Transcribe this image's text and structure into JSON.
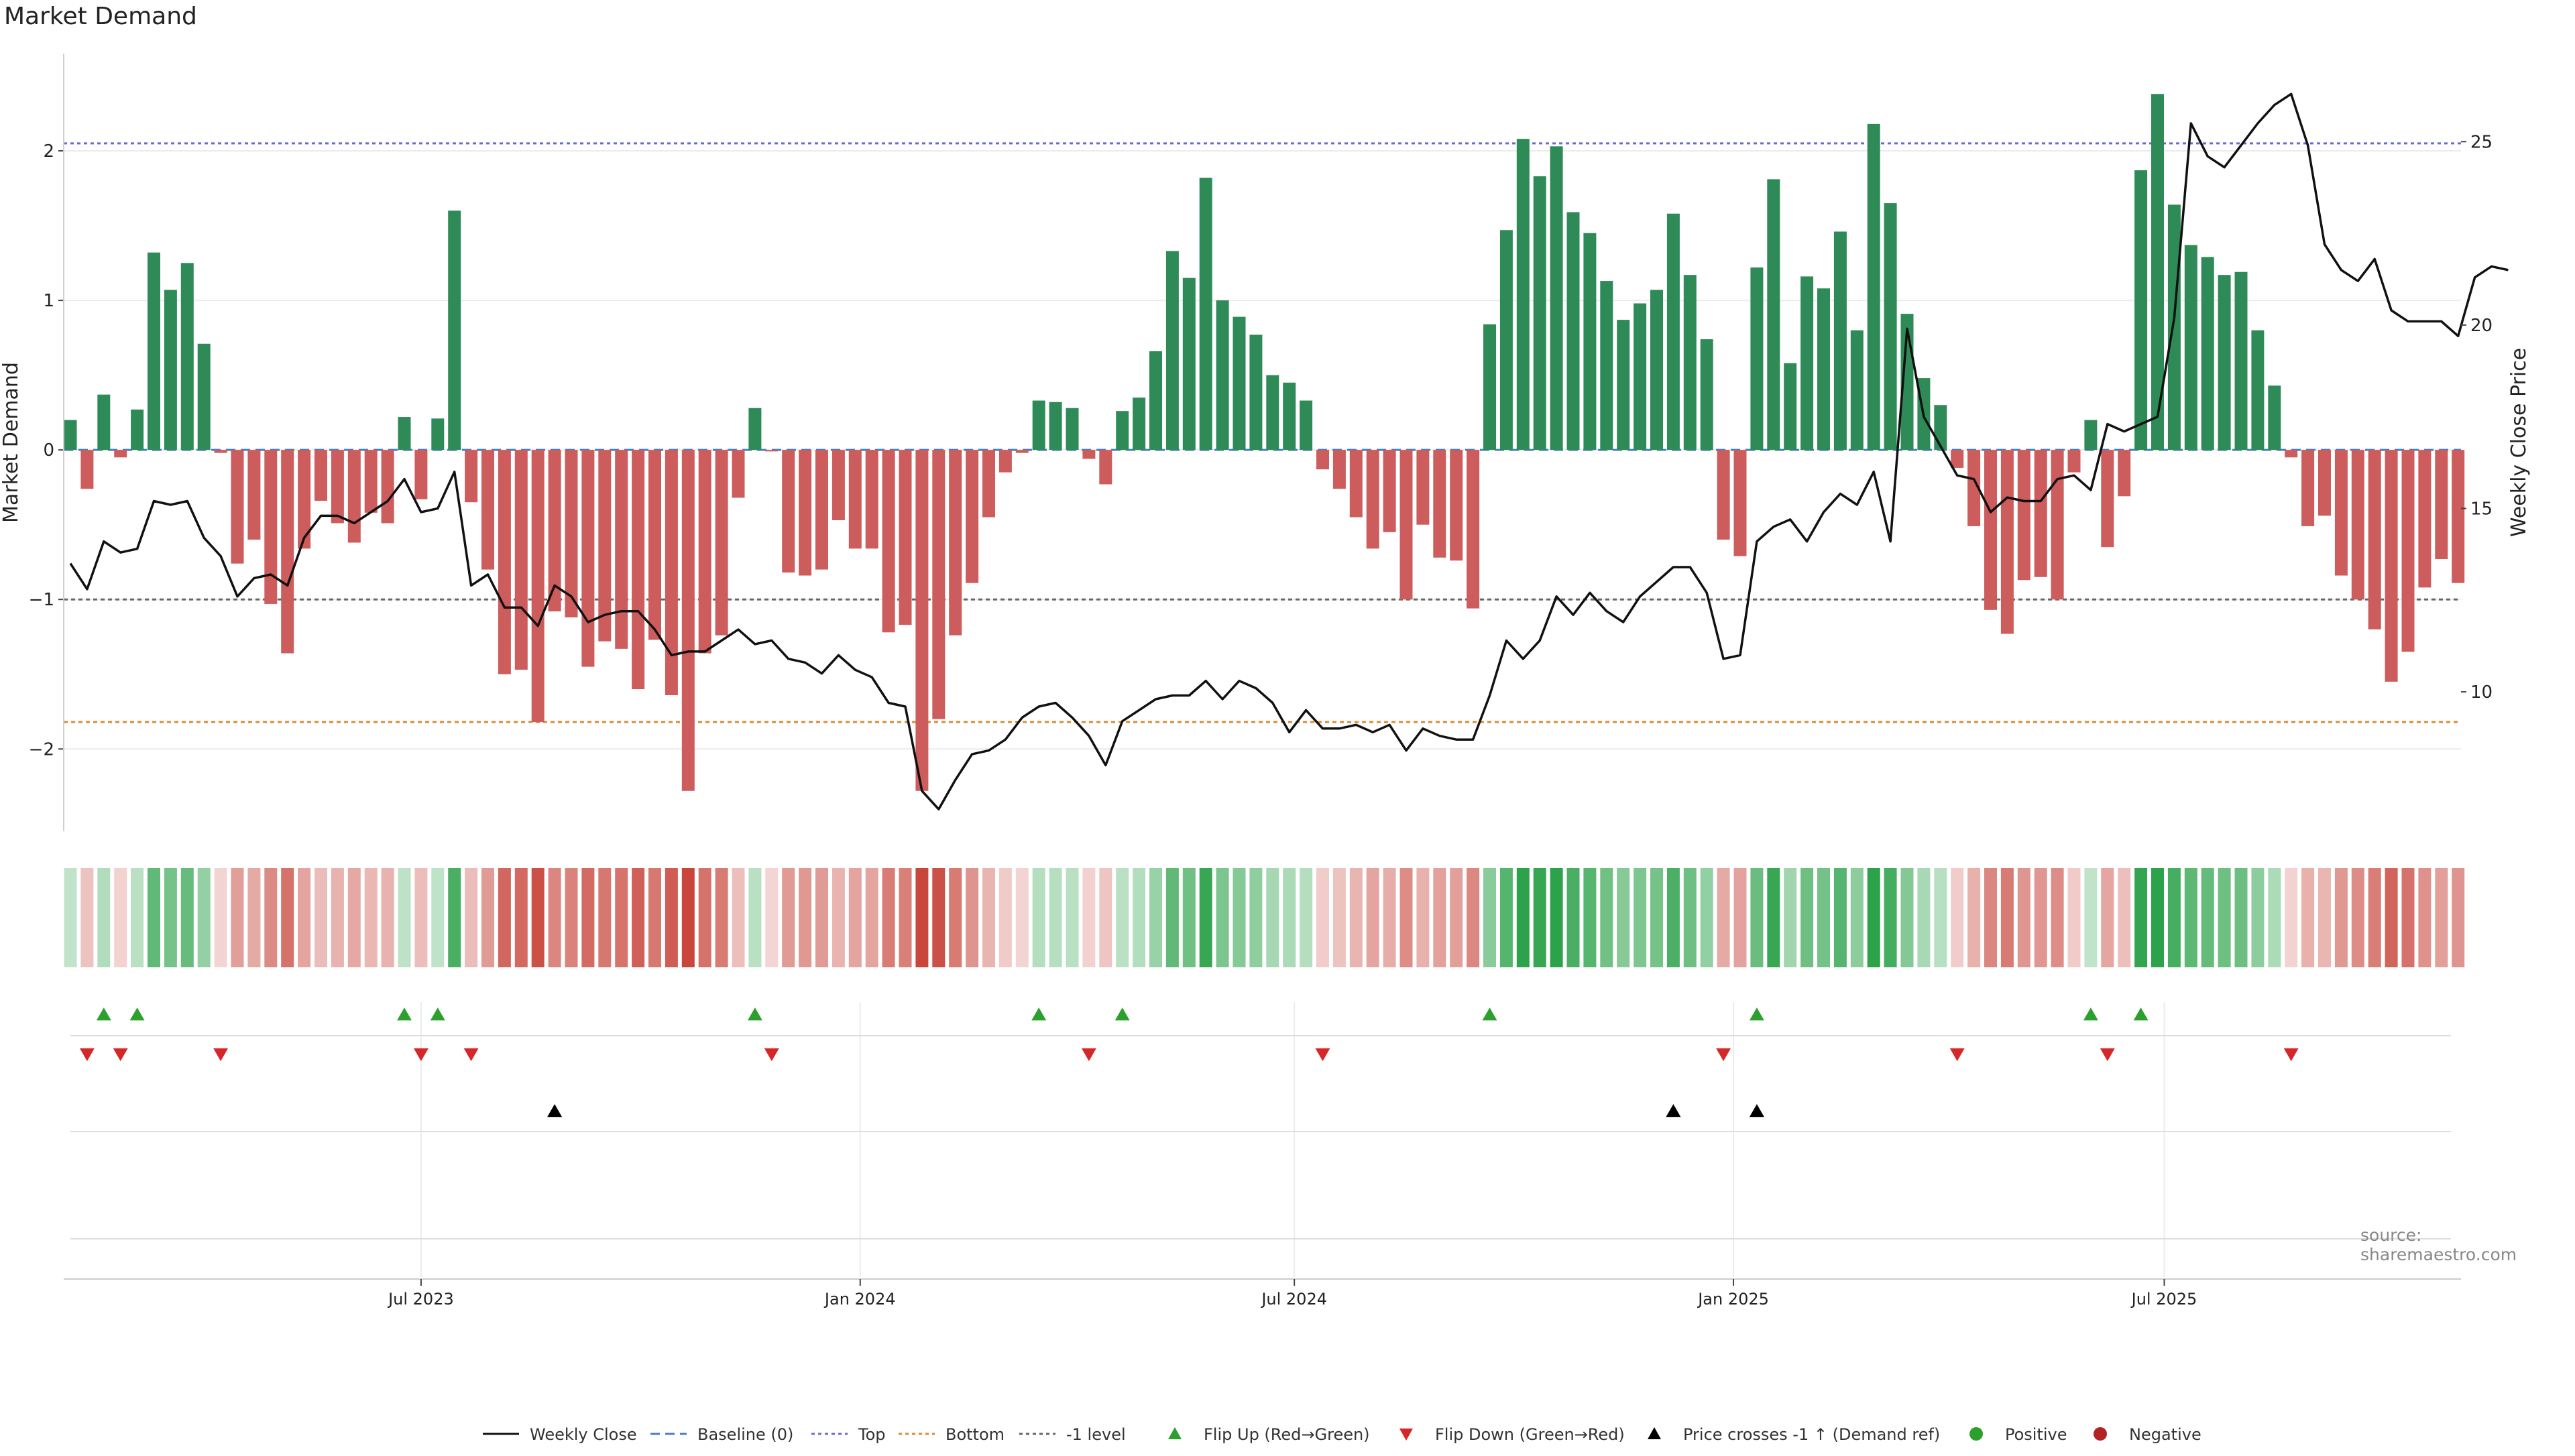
{
  "page": {
    "title": "Market Demand",
    "source": "source: sharemaestro.com"
  },
  "colors": {
    "positive": "#2e8b57",
    "negative": "#cd5c5c",
    "price": "#111111",
    "top_line": "#6a6ad0",
    "bottom_line": "#e08a30",
    "minus_one_line": "#666666",
    "flip_up": "#2ca02c",
    "flip_down": "#d62728",
    "cross": "#000000",
    "dot_positive": "#2ca02c",
    "dot_negative": "#b22222"
  },
  "legend": [
    {
      "key": "weekly_close",
      "label": "Weekly Close",
      "symbol": "line",
      "color": "#111111"
    },
    {
      "key": "baseline",
      "label": "Baseline (0)",
      "symbol": "dash",
      "color": "#4a7fc1"
    },
    {
      "key": "top",
      "label": "Top",
      "symbol": "dot",
      "color": "#6a6ad0"
    },
    {
      "key": "bottom",
      "label": "Bottom",
      "symbol": "dot",
      "color": "#e08a30"
    },
    {
      "key": "minus_one",
      "label": "-1 level",
      "symbol": "dot",
      "color": "#666666"
    },
    {
      "key": "flip_up",
      "label": "Flip Up (Red→Green)",
      "symbol": "tri-up",
      "color": "#2ca02c"
    },
    {
      "key": "flip_down",
      "label": "Flip Down (Green→Red)",
      "symbol": "tri-down",
      "color": "#d62728"
    },
    {
      "key": "price_cross",
      "label": "Price crosses -1 ↑ (Demand ref)",
      "symbol": "tri-up",
      "color": "#000000"
    },
    {
      "key": "positive",
      "label": "Positive",
      "symbol": "circle",
      "color": "#2ca02c"
    },
    {
      "key": "negative",
      "label": "Negative",
      "symbol": "circle",
      "color": "#b22222"
    }
  ],
  "chart_data": {
    "type": "bar",
    "title": "Market Demand",
    "ylabel": "Market Demand",
    "y2label": "Weekly Close Price",
    "ylim": [
      -2.55,
      2.65
    ],
    "y2lim": [
      6.2,
      27.4
    ],
    "yticks": [
      -2,
      -1,
      0,
      1,
      2
    ],
    "y2ticks": [
      10,
      15,
      20,
      25
    ],
    "xticks": [
      {
        "label": "Jul 2023",
        "week": 21
      },
      {
        "label": "Jan 2024",
        "week": 47.3
      },
      {
        "label": "Jul 2024",
        "week": 73.3
      },
      {
        "label": "Jan 2025",
        "week": 99.6
      },
      {
        "label": "Jul 2025",
        "week": 125.4
      }
    ],
    "levels": {
      "top": 2.05,
      "bottom": -1.82,
      "minus_one": -1.0,
      "baseline": 0
    },
    "demand": [
      0.2,
      -0.26,
      0.37,
      -0.05,
      0.27,
      1.32,
      1.07,
      1.25,
      0.71,
      -0.02,
      -0.76,
      -0.6,
      -1.03,
      -1.36,
      -0.66,
      -0.34,
      -0.49,
      -0.62,
      -0.42,
      -0.49,
      0.22,
      -0.33,
      0.21,
      1.6,
      -0.35,
      -0.8,
      -1.5,
      -1.47,
      -1.82,
      -1.08,
      -1.12,
      -1.45,
      -1.28,
      -1.33,
      -1.6,
      -1.27,
      -1.64,
      -2.28,
      -1.36,
      -1.24,
      -0.32,
      0.28,
      -0.01,
      -0.82,
      -0.84,
      -0.8,
      -0.47,
      -0.66,
      -0.66,
      -1.22,
      -1.17,
      -2.28,
      -1.8,
      -1.24,
      -0.89,
      -0.45,
      -0.15,
      -0.02,
      0.33,
      0.32,
      0.28,
      -0.06,
      -0.23,
      0.26,
      0.35,
      0.66,
      1.33,
      1.15,
      1.82,
      1.0,
      0.89,
      0.77,
      0.5,
      0.45,
      0.33,
      -0.13,
      -0.26,
      -0.45,
      -0.66,
      -0.55,
      -1.0,
      -0.5,
      -0.72,
      -0.74,
      -1.06,
      0.84,
      1.47,
      2.08,
      1.83,
      2.03,
      1.59,
      1.45,
      1.13,
      0.87,
      0.98,
      1.07,
      1.58,
      1.17,
      0.74,
      -0.6,
      -0.71,
      1.22,
      1.81,
      0.58,
      1.16,
      1.08,
      1.46,
      0.8,
      2.18,
      1.65,
      0.91,
      0.48,
      0.3,
      -0.12,
      -0.51,
      -1.07,
      -1.23,
      -0.87,
      -0.85,
      -1.0,
      -0.15,
      0.2,
      -0.65,
      -0.31,
      1.87,
      2.38,
      1.64,
      1.37,
      1.29,
      1.17,
      1.19,
      0.8,
      0.43,
      -0.05,
      -0.51,
      -0.44,
      -0.84,
      -1.0,
      -1.2,
      -1.55,
      -1.35,
      -0.92,
      -0.73,
      -0.89
    ],
    "price": [
      13.5,
      12.8,
      14.1,
      13.8,
      13.9,
      15.2,
      15.1,
      15.2,
      14.2,
      13.7,
      12.6,
      13.1,
      13.2,
      12.9,
      14.2,
      14.8,
      14.8,
      14.6,
      14.9,
      15.2,
      15.8,
      14.9,
      15.0,
      16.0,
      12.9,
      13.2,
      12.3,
      12.3,
      11.8,
      12.9,
      12.6,
      11.9,
      12.1,
      12.2,
      12.2,
      11.7,
      11.0,
      11.1,
      11.1,
      11.4,
      11.7,
      11.3,
      11.4,
      10.9,
      10.8,
      10.5,
      11.0,
      10.6,
      10.4,
      9.7,
      9.6,
      7.3,
      6.8,
      7.6,
      8.3,
      8.4,
      8.7,
      9.3,
      9.6,
      9.7,
      9.3,
      8.8,
      8.0,
      9.2,
      9.5,
      9.8,
      9.9,
      9.9,
      10.3,
      9.8,
      10.3,
      10.1,
      9.7,
      8.9,
      9.5,
      9.0,
      9.0,
      9.1,
      8.9,
      9.1,
      8.4,
      9.0,
      8.8,
      8.7,
      8.7,
      9.9,
      11.4,
      10.9,
      11.4,
      12.6,
      12.1,
      12.7,
      12.2,
      11.9,
      12.6,
      13.0,
      13.4,
      13.4,
      12.7,
      10.9,
      11.0,
      14.1,
      14.5,
      14.7,
      14.1,
      14.9,
      15.4,
      15.1,
      16.0,
      14.1,
      19.9,
      17.5,
      16.7,
      15.9,
      15.8,
      14.9,
      15.3,
      15.2,
      15.2,
      15.8,
      15.9,
      15.5,
      17.3,
      17.1,
      17.3,
      17.5,
      20.2,
      25.5,
      24.6,
      24.3,
      24.9,
      25.5,
      26.0,
      26.3,
      24.9,
      22.2,
      21.5,
      21.2,
      21.8,
      20.4,
      20.1,
      20.1,
      20.1,
      19.7,
      21.3,
      21.6,
      21.5
    ],
    "flip_up_weeks": [
      2,
      4,
      20,
      22,
      41,
      58,
      63,
      85,
      101,
      121,
      124
    ],
    "flip_down_weeks": [
      1,
      3,
      9,
      21,
      24,
      42,
      61,
      75,
      99,
      113,
      122,
      133
    ],
    "price_cross_weeks": [
      29,
      96,
      101
    ],
    "series": [
      {
        "name": "Market Demand",
        "role": "bars"
      },
      {
        "name": "Weekly Close",
        "role": "line"
      }
    ]
  }
}
